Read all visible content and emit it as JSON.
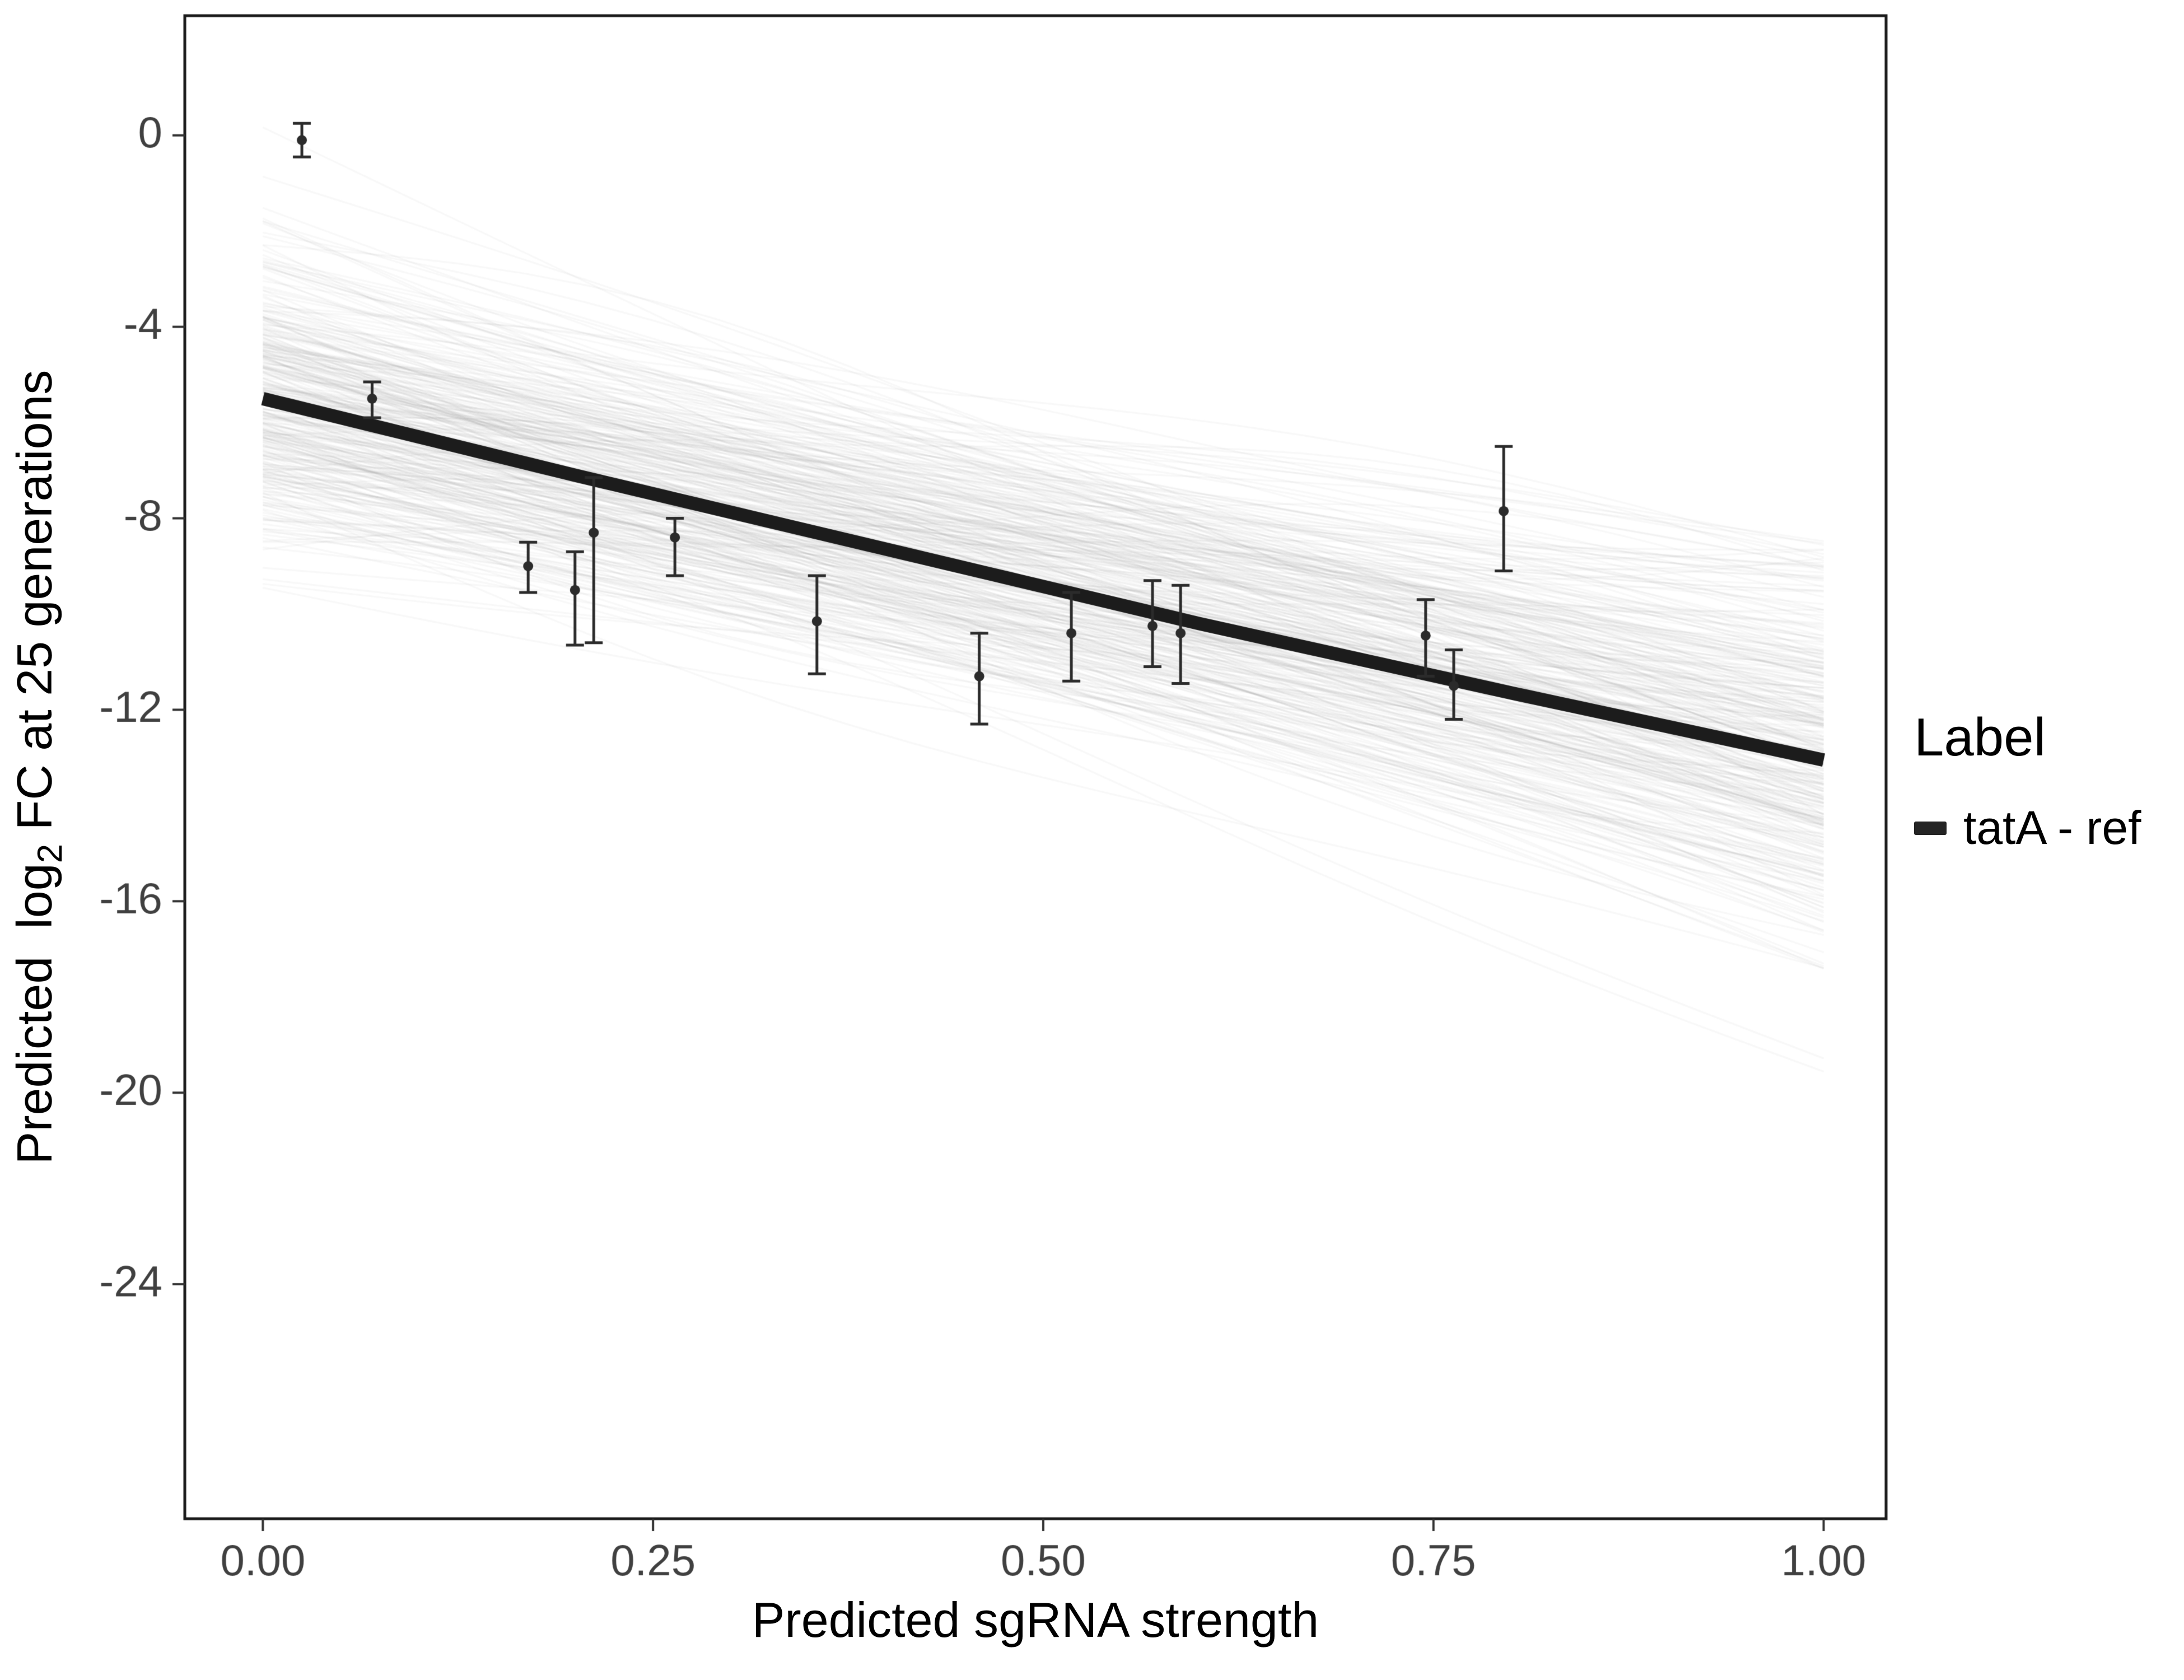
{
  "figure": {
    "xlabel": "Predicted sgRNA strength",
    "ylabel": {
      "prefix": "Predicted  log",
      "sub": "2",
      "suffix": " FC at 25 generations"
    },
    "legend": {
      "title": "Label",
      "entries": [
        {
          "label": "tatA - ref",
          "color": "#242424"
        }
      ]
    }
  },
  "chart_data": {
    "type": "scatter+regression",
    "title": "",
    "xlabel": "Predicted sgRNA strength",
    "ylabel": "Predicted log2 FC at 25 generations",
    "xlim": [
      -0.05,
      1.04
    ],
    "ylim": [
      -28.9,
      2.5
    ],
    "x_ticks": [
      0,
      0.25,
      0.5,
      0.75,
      1.0
    ],
    "x_tick_labels": [
      "0.00",
      "0.25",
      "0.50",
      "0.75",
      "1.00"
    ],
    "y_ticks": [
      0,
      -4,
      -8,
      -12,
      -16,
      -20,
      -24
    ],
    "y_tick_labels": [
      "0",
      "-4",
      "-8",
      "-12",
      "-16",
      "-20",
      "-24"
    ],
    "grid": false,
    "legend_position": "right",
    "regression_line": {
      "label": "tatA - ref",
      "color": "#1c1c1c",
      "width": 24,
      "points": [
        [
          0,
          -5.5
        ],
        [
          0.2,
          -7.1
        ],
        [
          0.4,
          -8.65
        ],
        [
          0.6,
          -10.2
        ],
        [
          0.8,
          -11.65
        ],
        [
          1.0,
          -13.05
        ]
      ]
    },
    "posterior_draws": {
      "count": 350,
      "seed": 42,
      "x_start": 0,
      "x_end": 1,
      "start_mean": -5.6,
      "start_sd": 1.7,
      "end_mean": -13.0,
      "end_sd": 2.0,
      "wiggle_sd": 0.55,
      "wiggle2_sd": 0.3,
      "color": "#999999",
      "alpha": 0.07,
      "line_width": 3
    },
    "points": [
      {
        "x": 0.025,
        "y": -0.1,
        "lo": -0.45,
        "hi": 0.25
      },
      {
        "x": 0.07,
        "y": -5.5,
        "lo": -5.9,
        "hi": -5.15
      },
      {
        "x": 0.17,
        "y": -9.0,
        "lo": -9.55,
        "hi": -8.5
      },
      {
        "x": 0.2,
        "y": -9.5,
        "lo": -10.65,
        "hi": -8.7
      },
      {
        "x": 0.212,
        "y": -8.3,
        "lo": -10.6,
        "hi": -7.15
      },
      {
        "x": 0.264,
        "y": -8.4,
        "lo": -9.2,
        "hi": -8.0
      },
      {
        "x": 0.355,
        "y": -10.15,
        "lo": -11.25,
        "hi": -9.2
      },
      {
        "x": 0.459,
        "y": -11.3,
        "lo": -12.3,
        "hi": -10.4
      },
      {
        "x": 0.518,
        "y": -10.4,
        "lo": -11.4,
        "hi": -9.55
      },
      {
        "x": 0.57,
        "y": -10.25,
        "lo": -11.1,
        "hi": -9.3
      },
      {
        "x": 0.588,
        "y": -10.4,
        "lo": -11.45,
        "hi": -9.4
      },
      {
        "x": 0.745,
        "y": -10.45,
        "lo": -11.3,
        "hi": -9.7
      },
      {
        "x": 0.763,
        "y": -11.5,
        "lo": -12.2,
        "hi": -10.75
      },
      {
        "x": 0.795,
        "y": -7.85,
        "lo": -9.1,
        "hi": -6.5
      }
    ],
    "point_style": {
      "color": "#2b2b2b",
      "point_radius": 9,
      "errorbar_width": 5,
      "cap_halfwidth": 16
    },
    "axis_style": {
      "border_color": "#1a1a1a",
      "border_width": 5,
      "tick_color": "#333333",
      "tick_width": 4,
      "tick_length": 22,
      "tick_label_color": "#404040",
      "tick_font_size": 78
    }
  }
}
